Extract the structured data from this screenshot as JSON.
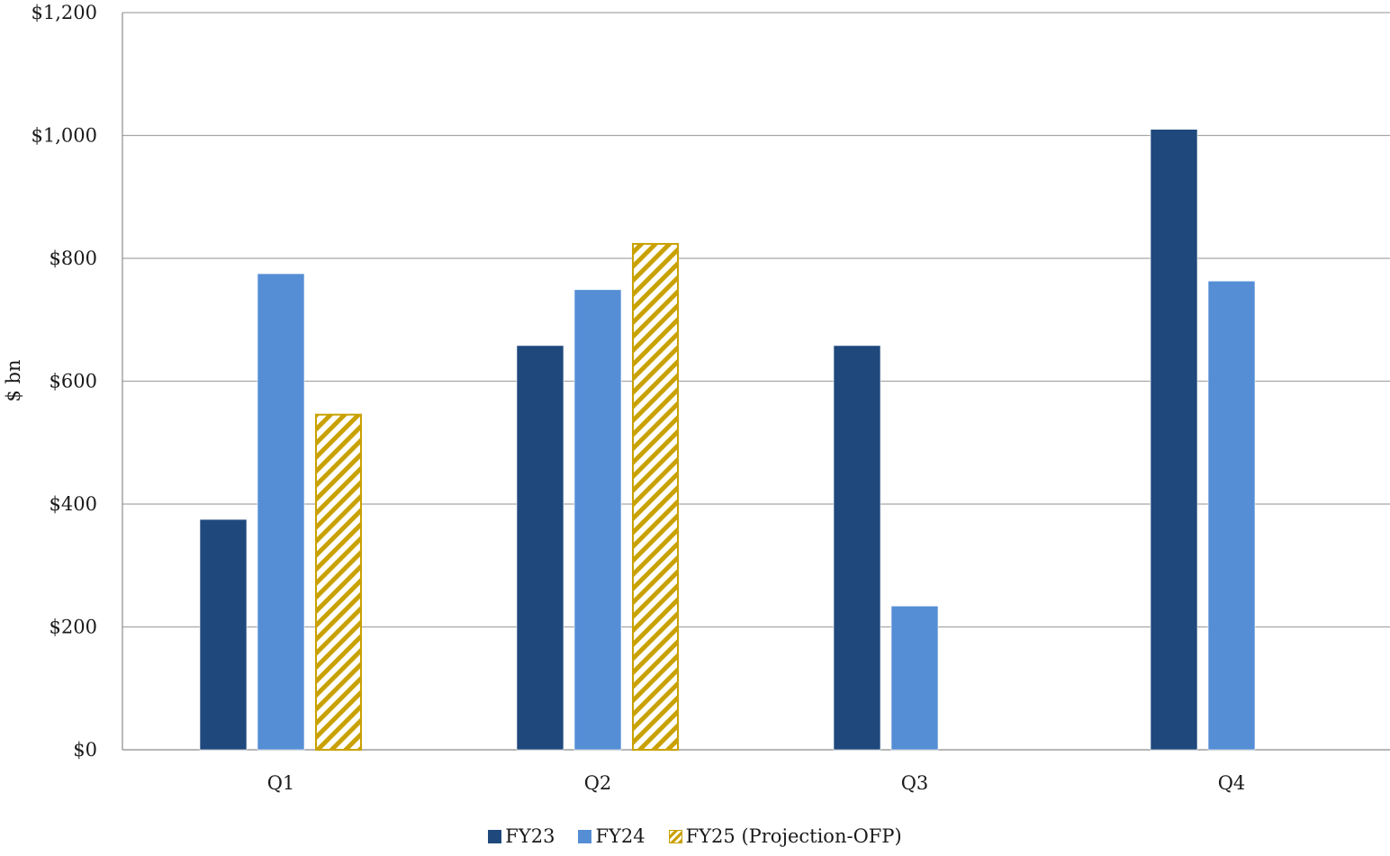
{
  "chart_data": {
    "type": "bar",
    "title": "",
    "xlabel": "",
    "ylabel": "$ bn",
    "categories": [
      "Q1",
      "Q2",
      "Q3",
      "Q4"
    ],
    "ylim": [
      0,
      1200
    ],
    "yticks": [
      0,
      200,
      400,
      600,
      800,
      1000,
      1200
    ],
    "ytick_labels": [
      "$0",
      "$200",
      "$400",
      "$600",
      "$800",
      "$1,000",
      "$1,200"
    ],
    "grid": true,
    "legend_position": "bottom-center",
    "series": [
      {
        "name": "FY23",
        "values": [
          375,
          658,
          658,
          1010
        ],
        "color": "#1f497d",
        "pattern": "solid"
      },
      {
        "name": "FY24",
        "values": [
          775,
          749,
          234,
          763
        ],
        "color": "#558ed5",
        "pattern": "solid"
      },
      {
        "name": "FY25 (Projection-OFP)",
        "values": [
          547,
          825,
          null,
          null
        ],
        "color": "#c9a100",
        "pattern": "diagonal-hatch"
      }
    ]
  }
}
